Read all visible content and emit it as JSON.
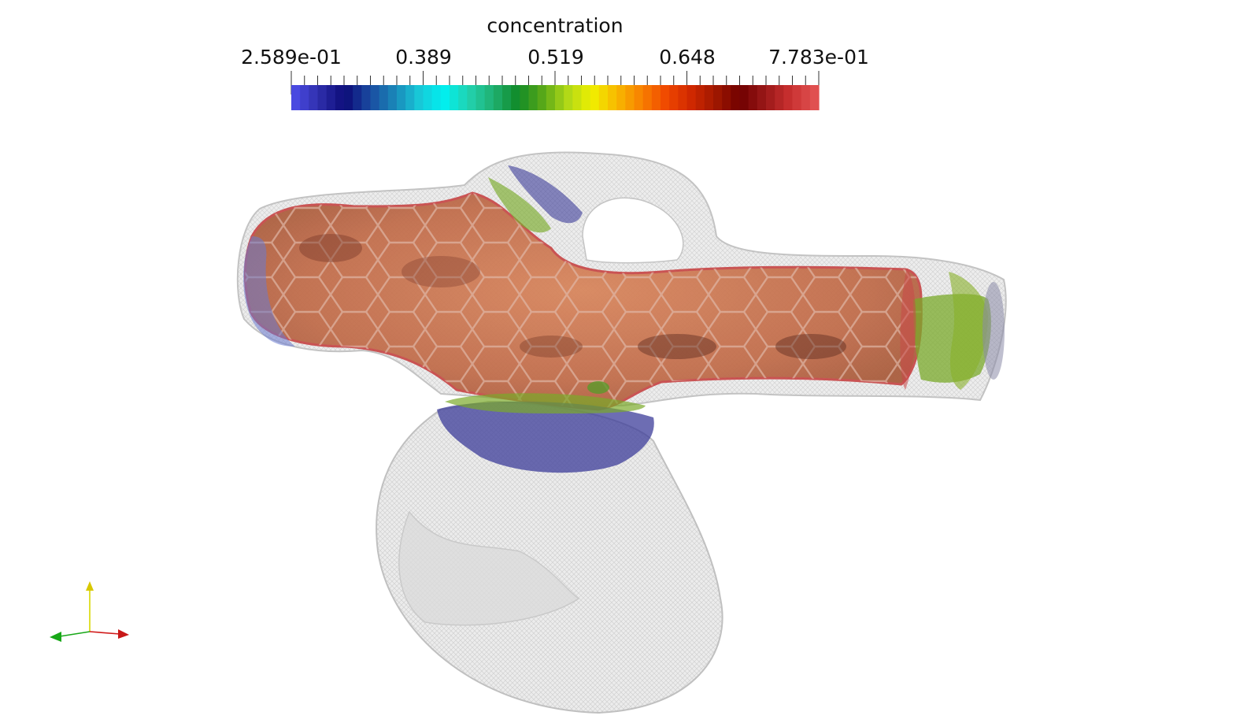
{
  "colorbar": {
    "title": "concentration",
    "tick_labels": [
      "2.589e-01",
      "0.389",
      "0.519",
      "0.648",
      "7.783e-01"
    ],
    "range": [
      0.2589,
      0.7783
    ],
    "colormap": [
      "#4a4ae0",
      "#2c2ca8",
      "#0c0c78",
      "#1a4aa0",
      "#1a86b8",
      "#18c8d8",
      "#00f0f0",
      "#22d2b0",
      "#20b070",
      "#108a28",
      "#58a818",
      "#b0d818",
      "#f0f000",
      "#f8b800",
      "#f88000",
      "#f04800",
      "#d02800",
      "#a01800",
      "#700000",
      "#9a1818",
      "#c83030",
      "#e05050"
    ]
  },
  "scene": {
    "vessel_fill": "#d06a4a",
    "vessel_outline": "#c84848",
    "wireframe_color": "#c8c8c8",
    "ring_blue": "#3c3c9a",
    "ring_green": "#7aaa2a"
  },
  "axes": {
    "x_color": "#d01818",
    "y_color": "#d8d800",
    "z_color": "#18a818"
  }
}
